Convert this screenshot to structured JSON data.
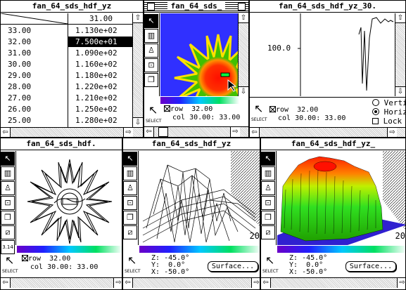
{
  "windows": {
    "table": {
      "title": "fan_64_sds_hdf_yz",
      "header_value": "31.00",
      "rows": [
        {
          "key": "33.00",
          "value": "1.130e+02"
        },
        {
          "key": "32.00",
          "value": "7.500e+01"
        },
        {
          "key": "31.00",
          "value": "1.090e+02"
        },
        {
          "key": "30.00",
          "value": "1.160e+02"
        },
        {
          "key": "29.00",
          "value": "1.180e+02"
        },
        {
          "key": "28.00",
          "value": "1.220e+02"
        },
        {
          "key": "27.00",
          "value": "1.210e+02"
        },
        {
          "key": "26.00",
          "value": "1.250e+02"
        },
        {
          "key": "25.00",
          "value": "1.280e+02"
        }
      ],
      "selected_row": 1
    },
    "image": {
      "title": "fan_64_sds_",
      "row_label": "row",
      "row_value": "32.00",
      "col_label": "col",
      "col_value": "30.00: 33.00",
      "select_label": "SELECT"
    },
    "plot": {
      "title": "fan_64_sds_hdf_yz_30.",
      "y_tick": "100.0",
      "row_label": "row",
      "row_value": "32.00",
      "col_label": "col",
      "col_value": "30.00: 33.00",
      "select_label": "SELECT",
      "radio_vertical": "Verti",
      "radio_horizontal": "Horiz",
      "checkbox_lock": "Lock"
    },
    "contour": {
      "title": "fan_64_sds_hdf.",
      "tool_readout": "3.14",
      "row_label": "row",
      "row_value": "32.00",
      "col_label": "col",
      "col_value": "30.00: 33.00",
      "select_label": "SELECT"
    },
    "wire": {
      "title": "fan_64_sds_hdf_yz",
      "z_label": "Z:",
      "z_value": "-45.0°",
      "y_label": "Y:",
      "y_value": "0.0°",
      "x_label": "X:",
      "x_value": "-50.0°",
      "axis_label": "20",
      "surface_button": "Surface...",
      "select_label": "SELECT"
    },
    "surface": {
      "title": "fan_64_sds_hdf_yz_",
      "z_label": "Z:",
      "z_value": "-45.0°",
      "y_label": "Y:",
      "y_value": "0.0°",
      "x_label": "X:",
      "x_value": "-50.0°",
      "axis_label": "20",
      "surface_button": "Surface...",
      "select_label": "SELECT"
    }
  },
  "colors": {
    "selection": "#000000",
    "heat_background": "#3030ff",
    "heat_star": "#ff2000"
  }
}
